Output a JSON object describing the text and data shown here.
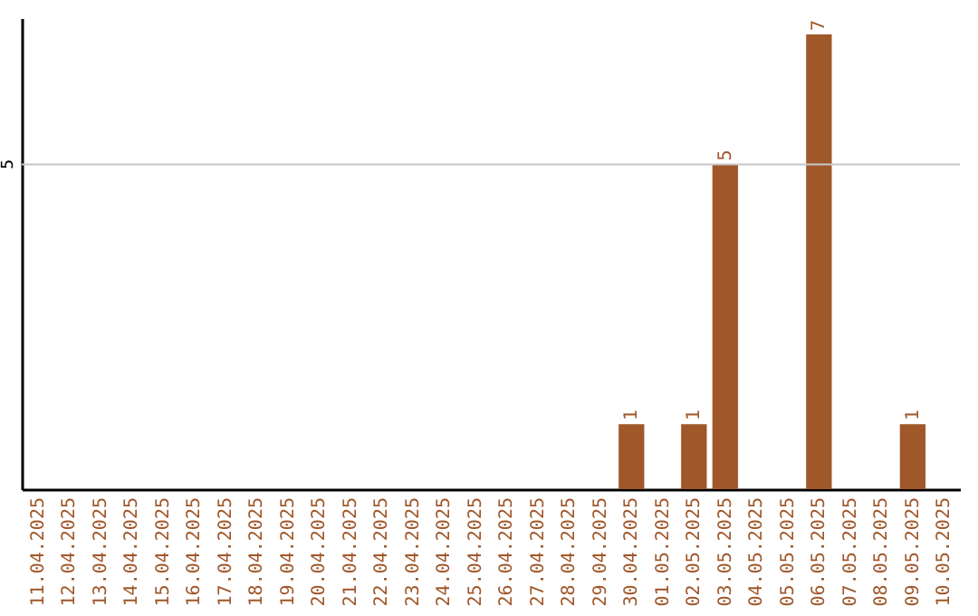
{
  "chart_data": {
    "type": "bar",
    "categories": [
      "11.04.2025",
      "12.04.2025",
      "13.04.2025",
      "14.04.2025",
      "15.04.2025",
      "16.04.2025",
      "17.04.2025",
      "18.04.2025",
      "19.04.2025",
      "20.04.2025",
      "21.04.2025",
      "22.04.2025",
      "23.04.2025",
      "24.04.2025",
      "25.04.2025",
      "26.04.2025",
      "27.04.2025",
      "28.04.2025",
      "29.04.2025",
      "30.04.2025",
      "01.05.2025",
      "02.05.2025",
      "03.05.2025",
      "04.05.2025",
      "05.05.2025",
      "06.05.2025",
      "07.05.2025",
      "08.05.2025",
      "09.05.2025",
      "10.05.2025"
    ],
    "values": [
      null,
      null,
      null,
      null,
      null,
      null,
      null,
      null,
      null,
      null,
      null,
      null,
      null,
      null,
      null,
      null,
      null,
      null,
      null,
      1,
      null,
      1,
      5,
      null,
      null,
      7,
      null,
      null,
      1,
      null
    ],
    "value_labels": [
      null,
      null,
      null,
      null,
      null,
      null,
      null,
      null,
      null,
      null,
      null,
      null,
      null,
      null,
      null,
      null,
      null,
      null,
      null,
      "1",
      null,
      "1",
      "5",
      null,
      null,
      "7",
      null,
      null,
      "1",
      null
    ],
    "color": "#a0572a",
    "ylim": [
      0,
      7.25
    ],
    "ref_lines": [
      {
        "axis": "y",
        "value": 5,
        "label": "5",
        "color": "#c8c8c8"
      }
    ]
  }
}
